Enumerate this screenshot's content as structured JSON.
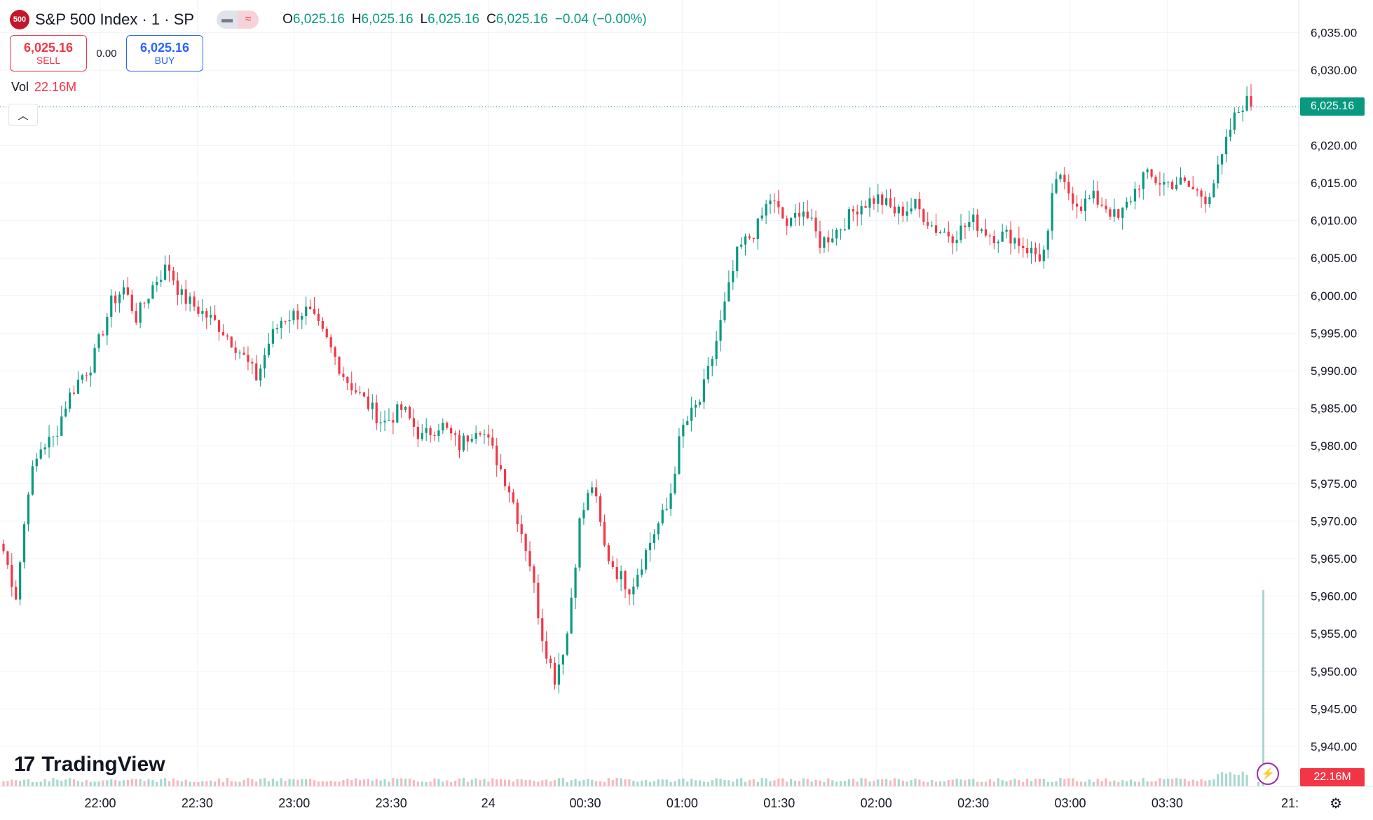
{
  "header": {
    "symbol_badge": "500",
    "title": "S&P 500 Index · 1 · SP",
    "o_label": "O",
    "o_value": "6,025.16",
    "h_label": "H",
    "h_value": "6,025.16",
    "l_label": "L",
    "l_value": "6,025.16",
    "c_label": "C",
    "c_value": "6,025.16",
    "change": "−0.04 (−0.00%)"
  },
  "trade": {
    "sell_price": "6,025.16",
    "sell_label": "SELL",
    "spread": "0.00",
    "buy_price": "6,025.16",
    "buy_label": "BUY"
  },
  "volume": {
    "label": "Vol",
    "value": "22.16M"
  },
  "branding": {
    "logo_text": "TradingView",
    "logo_mark": "17"
  },
  "colors": {
    "up": "#089981",
    "down": "#f23645",
    "grid": "#f0f3fa",
    "text": "#131722"
  },
  "price_tag": {
    "last": "6,025.16",
    "volume": "22.16M"
  },
  "axis_partial_label": "21:",
  "chart_data": {
    "type": "candlestick",
    "interval": "1 minute",
    "y_ticks": [
      "5,940.00",
      "5,945.00",
      "5,950.00",
      "5,955.00",
      "5,960.00",
      "5,965.00",
      "5,970.00",
      "5,975.00",
      "5,980.00",
      "5,985.00",
      "5,990.00",
      "5,995.00",
      "6,000.00",
      "6,005.00",
      "6,010.00",
      "6,015.00",
      "6,020.00",
      "6,025.00",
      "6,030.00",
      "6,035.00"
    ],
    "ylim": [
      5937,
      6037
    ],
    "x_ticks": [
      "22:00",
      "22:30",
      "23:00",
      "23:30",
      "24",
      "00:30",
      "01:00",
      "01:30",
      "02:00",
      "02:30",
      "03:00",
      "03:30"
    ],
    "last_price": 6025.16,
    "last_volume_millions": 22.16,
    "close_path": [
      [
        0,
        5966
      ],
      [
        2,
        5960
      ],
      [
        4,
        5975
      ],
      [
        6,
        5980
      ],
      [
        8,
        5981
      ],
      [
        10,
        5986
      ],
      [
        12,
        5989
      ],
      [
        14,
        5991
      ],
      [
        17,
        5999
      ],
      [
        19,
        6001
      ],
      [
        21,
        5997
      ],
      [
        24,
        6002
      ],
      [
        26,
        6004
      ],
      [
        28,
        6000
      ],
      [
        31,
        5998
      ],
      [
        34,
        5996
      ],
      [
        37,
        5993
      ],
      [
        40,
        5989
      ],
      [
        42,
        5994
      ],
      [
        44,
        5997
      ],
      [
        48,
        5998
      ],
      [
        51,
        5994
      ],
      [
        54,
        5989
      ],
      [
        57,
        5986
      ],
      [
        60,
        5983
      ],
      [
        63,
        5985
      ],
      [
        66,
        5981
      ],
      [
        69,
        5983
      ],
      [
        72,
        5980
      ],
      [
        75,
        5983
      ],
      [
        78,
        5978
      ],
      [
        80,
        5974
      ],
      [
        83,
        5965
      ],
      [
        85,
        5955
      ],
      [
        87,
        5949
      ],
      [
        89,
        5955
      ],
      [
        91,
        5970
      ],
      [
        93,
        5975
      ],
      [
        95,
        5966
      ],
      [
        97,
        5963
      ],
      [
        99,
        5961
      ],
      [
        101,
        5965
      ],
      [
        103,
        5969
      ],
      [
        105,
        5972
      ],
      [
        107,
        5982
      ],
      [
        110,
        5986
      ],
      [
        112,
        5992
      ],
      [
        114,
        5999
      ],
      [
        116,
        6006
      ],
      [
        119,
        6009
      ],
      [
        121,
        6013
      ],
      [
        124,
        6009
      ],
      [
        126,
        6012
      ],
      [
        129,
        6007
      ],
      [
        132,
        6009
      ],
      [
        135,
        6012
      ],
      [
        138,
        6013
      ],
      [
        141,
        6011
      ],
      [
        144,
        6012
      ],
      [
        147,
        6009
      ],
      [
        150,
        6008
      ],
      [
        153,
        6010
      ],
      [
        156,
        6008
      ],
      [
        159,
        6008
      ],
      [
        162,
        6006
      ],
      [
        164,
        6005
      ],
      [
        165,
        6008
      ],
      [
        166,
        6016
      ],
      [
        168,
        6014
      ],
      [
        170,
        6012
      ],
      [
        172,
        6013
      ],
      [
        174,
        6012
      ],
      [
        176,
        6010
      ],
      [
        178,
        6013
      ],
      [
        180,
        6016
      ],
      [
        183,
        6015
      ],
      [
        186,
        6015
      ],
      [
        188,
        6014
      ],
      [
        190,
        6013
      ],
      [
        192,
        6017
      ],
      [
        194,
        6023
      ],
      [
        196,
        6026
      ],
      [
        197,
        6025.16
      ]
    ]
  }
}
